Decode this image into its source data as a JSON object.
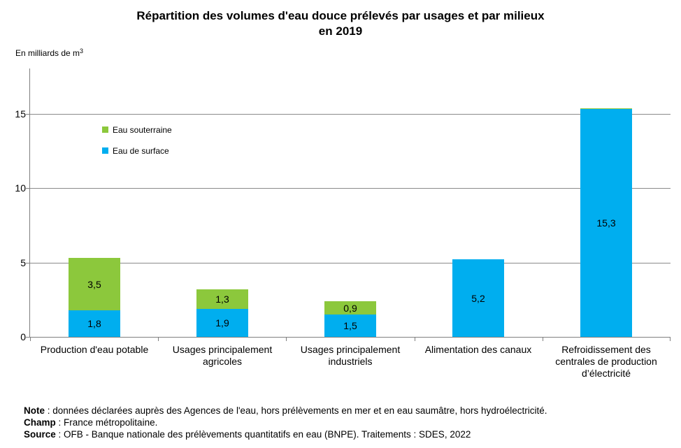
{
  "title": "Répartition des volumes d'eau douce prélevés par usages et par milieux\nen 2019",
  "unit": {
    "text": "En milliards de m",
    "sup": "3"
  },
  "legend": {
    "items": [
      {
        "label": "Eau souterraine",
        "color": "#8CC83C"
      },
      {
        "label": "Eau de surface",
        "color": "#00AEEF"
      }
    ]
  },
  "footer": {
    "notes": [
      {
        "label": "Note",
        "text": " : données déclarées auprès des Agences de l'eau, hors prélèvements en mer et en eau saumâtre, hors hydroélectricité."
      },
      {
        "label": "Champ",
        "text": " : France métropolitaine."
      },
      {
        "label": "Source",
        "text": " : OFB - Banque nationale des prélèvements quantitatifs en eau (BNPE). Traitements : SDES, 2022"
      }
    ]
  },
  "chart_data": {
    "type": "bar",
    "stacked": true,
    "title": "Répartition des volumes d'eau douce prélevés par usages et par milieux en 2019",
    "unit_label": "En milliards de m³",
    "categories": [
      "Production d'eau potable",
      "Usages principalement agricoles",
      "Usages principalement industriels",
      "Alimentation des canaux",
      "Refroidissement des centrales de production d’électricité"
    ],
    "series": [
      {
        "name": "Eau de surface",
        "color": "#00AEEF",
        "values": [
          1.8,
          1.9,
          1.5,
          5.2,
          15.3
        ],
        "labels": [
          "1,8",
          "1,9",
          "1,5",
          "5,2",
          "15,3"
        ]
      },
      {
        "name": "Eau souterraine",
        "color": "#8CC83C",
        "values": [
          3.5,
          1.3,
          0.9,
          0,
          0.07
        ],
        "labels": [
          "3,5",
          "1,3",
          "0,9",
          "",
          ""
        ]
      }
    ],
    "yticks": [
      0,
      5,
      10,
      15
    ],
    "ylim": [
      0,
      18
    ],
    "ylabel": "En milliards de m³",
    "xlabel": "",
    "grid": "horizontal",
    "legend_position": "inside-top-left"
  }
}
